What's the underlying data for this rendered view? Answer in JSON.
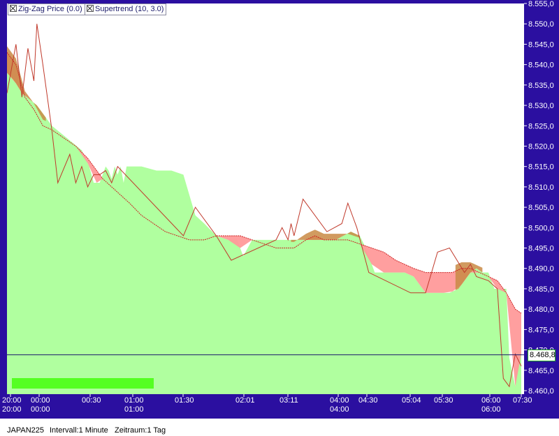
{
  "chart_data": {
    "type": "area",
    "instrument": "JAPAN225",
    "y_axis": {
      "min": 8460,
      "max": 8555,
      "ticks": [
        "8.460,0",
        "8.465,0",
        "8.470,0",
        "8.475,0",
        "8.480,0",
        "8.485,0",
        "8.490,0",
        "8.495,0",
        "8.500,0",
        "8.505,0",
        "8.510,0",
        "8.515,0",
        "8.520,0",
        "8.525,0",
        "8.530,0",
        "8.535,0",
        "8.540,0",
        "8.545,0",
        "8.550,0",
        "8.555,0"
      ],
      "position": "right"
    },
    "x_axis": {
      "labels_row1": [
        "20:00",
        "00:00",
        "00:30",
        "01:00",
        "01:30",
        "02:01",
        "03:11",
        "04:00",
        "04:30",
        "05:04",
        "05:30",
        "06:00",
        "07:30"
      ],
      "labels_row2": [
        "20:00",
        "00:00",
        "01:00",
        "04:00",
        "06:00"
      ]
    },
    "legend": {
      "items": [
        "Zig-Zag Price (0.0)",
        "Supertrend (10, 3.0)"
      ],
      "placement": "top-left"
    },
    "last_price": {
      "value": 8468.8,
      "label": "8.468,8"
    },
    "colors": {
      "background": "#2b0fa0",
      "plot": "#ffffff",
      "price_area": "#b0ff9f",
      "supertrend_bear": "#ff9a9a",
      "supertrend_bull": "#c98a44",
      "zigzag": "#c0392b",
      "last_price_line": "#1a1a6a",
      "volume_bar": "#55ff22"
    },
    "price_series": [
      [
        0,
        8538
      ],
      [
        5,
        8536
      ],
      [
        10,
        8533
      ],
      [
        20,
        8530
      ],
      [
        30,
        8525
      ],
      [
        40,
        8522
      ],
      [
        50,
        8519
      ],
      [
        55,
        8515
      ],
      [
        58,
        8511
      ],
      [
        62,
        8511
      ],
      [
        66,
        8515
      ],
      [
        68,
        8514
      ],
      [
        70,
        8512
      ],
      [
        72,
        8515
      ],
      [
        74,
        8513
      ],
      [
        76,
        8515
      ],
      [
        78,
        8511
      ],
      [
        80,
        8515
      ],
      [
        84,
        8515
      ],
      [
        90,
        8515
      ],
      [
        100,
        8514
      ],
      [
        110,
        8514
      ],
      [
        118,
        8513
      ],
      [
        122,
        8508
      ],
      [
        126,
        8503
      ],
      [
        132,
        8501
      ],
      [
        140,
        8498
      ],
      [
        148,
        8497
      ],
      [
        154,
        8497
      ],
      [
        158,
        8493
      ],
      [
        164,
        8497
      ],
      [
        172,
        8497
      ],
      [
        180,
        8497
      ],
      [
        188,
        8497
      ],
      [
        192,
        8497
      ],
      [
        196,
        8497
      ],
      [
        200,
        8497
      ],
      [
        206,
        8497
      ],
      [
        212,
        8497
      ],
      [
        220,
        8497
      ],
      [
        225,
        8498
      ],
      [
        230,
        8499
      ],
      [
        236,
        8498
      ],
      [
        240,
        8495
      ],
      [
        246,
        8489
      ],
      [
        252,
        8489
      ],
      [
        258,
        8489
      ],
      [
        266,
        8489
      ],
      [
        272,
        8488
      ],
      [
        280,
        8484
      ],
      [
        288,
        8484
      ],
      [
        296,
        8484
      ],
      [
        302,
        8485
      ],
      [
        306,
        8487
      ],
      [
        310,
        8489
      ],
      [
        314,
        8490
      ],
      [
        318,
        8489
      ],
      [
        322,
        8489
      ],
      [
        326,
        8485
      ],
      [
        330,
        8485
      ],
      [
        334,
        8485
      ],
      [
        336,
        8468
      ],
      [
        340,
        8461
      ],
      [
        342,
        8470
      ],
      [
        344,
        8469
      ]
    ],
    "supertrend_upper": [
      [
        0,
        8543
      ],
      [
        6,
        8540
      ],
      [
        12,
        8532
      ],
      [
        18,
        8529
      ],
      [
        24,
        8525
      ],
      [
        30,
        8524
      ],
      [
        38,
        8522
      ],
      [
        46,
        8520
      ],
      [
        54,
        8517
      ],
      [
        60,
        8514
      ],
      [
        64,
        8512
      ],
      [
        70,
        8510
      ],
      [
        76,
        8508
      ],
      [
        82,
        8506
      ],
      [
        90,
        8503
      ],
      [
        98,
        8501
      ],
      [
        106,
        8499
      ],
      [
        114,
        8498
      ],
      [
        122,
        8497
      ],
      [
        132,
        8497
      ],
      [
        140,
        8498
      ],
      [
        148,
        8498
      ],
      [
        156,
        8498
      ],
      [
        164,
        8497
      ],
      [
        172,
        8496
      ],
      [
        180,
        8495
      ],
      [
        186,
        8495
      ],
      [
        192,
        8495
      ],
      [
        200,
        8497
      ],
      [
        206,
        8498
      ],
      [
        212,
        8497
      ],
      [
        220,
        8497
      ],
      [
        228,
        8497
      ],
      [
        236,
        8496
      ],
      [
        244,
        8495
      ],
      [
        252,
        8494
      ],
      [
        260,
        8492
      ],
      [
        266,
        8491
      ],
      [
        272,
        8490
      ],
      [
        280,
        8489
      ],
      [
        286,
        8489
      ],
      [
        292,
        8489
      ],
      [
        298,
        8489
      ],
      [
        304,
        8490
      ],
      [
        310,
        8490
      ],
      [
        316,
        8489
      ],
      [
        322,
        8488
      ],
      [
        328,
        8487
      ],
      [
        334,
        8484
      ],
      [
        340,
        8480
      ],
      [
        344,
        8479
      ]
    ],
    "zigzag": [
      [
        0,
        8533
      ],
      [
        6,
        8545
      ],
      [
        10,
        8532
      ],
      [
        14,
        8544
      ],
      [
        18,
        8536
      ],
      [
        20,
        8550
      ],
      [
        24,
        8540
      ],
      [
        30,
        8524
      ],
      [
        34,
        8511
      ],
      [
        42,
        8518
      ],
      [
        46,
        8511
      ],
      [
        50,
        8515
      ],
      [
        54,
        8510
      ],
      [
        58,
        8513
      ],
      [
        62,
        8513
      ],
      [
        66,
        8514
      ],
      [
        70,
        8511
      ],
      [
        74,
        8515
      ],
      [
        118,
        8498
      ],
      [
        126,
        8505
      ],
      [
        140,
        8498
      ],
      [
        150,
        8492
      ],
      [
        180,
        8497
      ],
      [
        184,
        8500
      ],
      [
        188,
        8497
      ],
      [
        190,
        8501
      ],
      [
        192,
        8498
      ],
      [
        198,
        8507
      ],
      [
        214,
        8499
      ],
      [
        224,
        8501
      ],
      [
        228,
        8506
      ],
      [
        234,
        8500
      ],
      [
        242,
        8489
      ],
      [
        270,
        8484
      ],
      [
        280,
        8484
      ],
      [
        288,
        8494
      ],
      [
        296,
        8495
      ],
      [
        306,
        8489
      ],
      [
        310,
        8491
      ],
      [
        314,
        8488
      ],
      [
        322,
        8487
      ],
      [
        328,
        8485
      ],
      [
        332,
        8463
      ],
      [
        336,
        8461
      ],
      [
        340,
        8469
      ],
      [
        344,
        8466
      ]
    ]
  },
  "footer": {
    "instrument": "JAPAN225",
    "interval": "Intervall:1 Minute",
    "range": "Zeitraum:1 Tag"
  }
}
